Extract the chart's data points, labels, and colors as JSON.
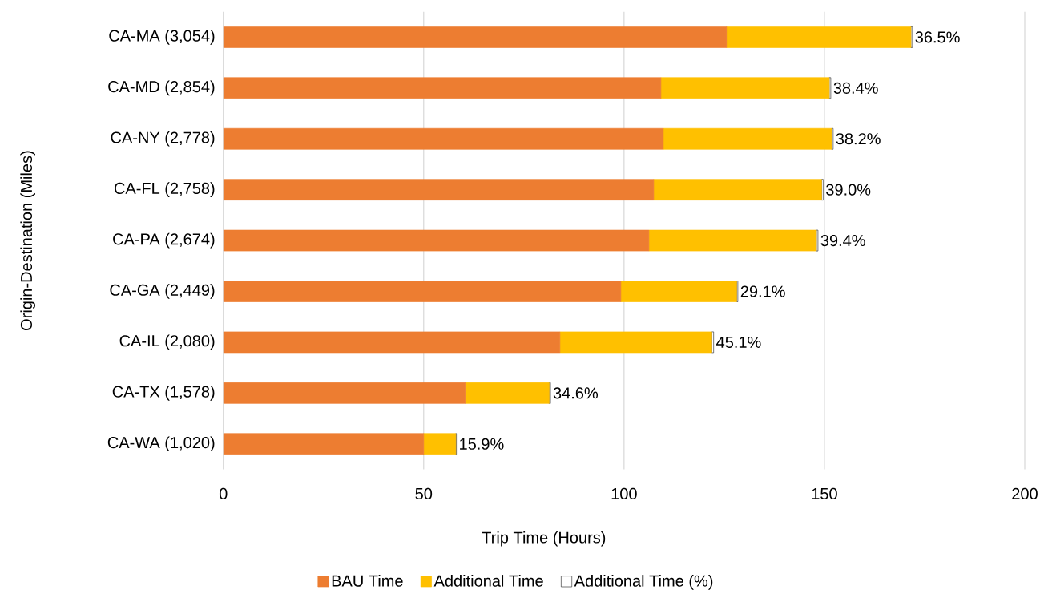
{
  "chart_data": {
    "type": "bar",
    "orientation": "horizontal",
    "stacked": true,
    "xlabel": "Trip Time (Hours)",
    "ylabel": "Origin-Destination (Miles)",
    "categories": [
      "CA-MA (3,054)",
      "CA-MD (2,854)",
      "CA-NY (2,778)",
      "CA-FL (2,758)",
      "CA-PA (2,674)",
      "CA-GA (2,449)",
      "CA-IL (2,080)",
      "CA-TX (1,578)",
      "CA-WA (1,020)"
    ],
    "series": [
      {
        "name": "BAU Time",
        "color": "#ed7d31",
        "values": [
          125.6,
          109.2,
          109.8,
          107.4,
          106.2,
          99.2,
          84.0,
          60.4,
          50.0
        ]
      },
      {
        "name": "Additional Time",
        "color": "#ffc000",
        "values": [
          46.0,
          42.0,
          42.0,
          41.9,
          41.8,
          28.9,
          37.9,
          20.9,
          8.0
        ]
      },
      {
        "name": "Additional Time (%)",
        "color": "#ffffff",
        "values": [
          0.365,
          0.384,
          0.382,
          0.39,
          0.394,
          0.291,
          0.451,
          0.346,
          0.159
        ],
        "value_labels": [
          "36.5%",
          "38.4%",
          "38.2%",
          "39.0%",
          "39.4%",
          "29.1%",
          "45.1%",
          "34.6%",
          "15.9%"
        ]
      }
    ],
    "xlim": [
      0,
      200
    ],
    "xticks": [
      0,
      50,
      100,
      150,
      200
    ],
    "grid": "x",
    "legend": "bottom"
  }
}
